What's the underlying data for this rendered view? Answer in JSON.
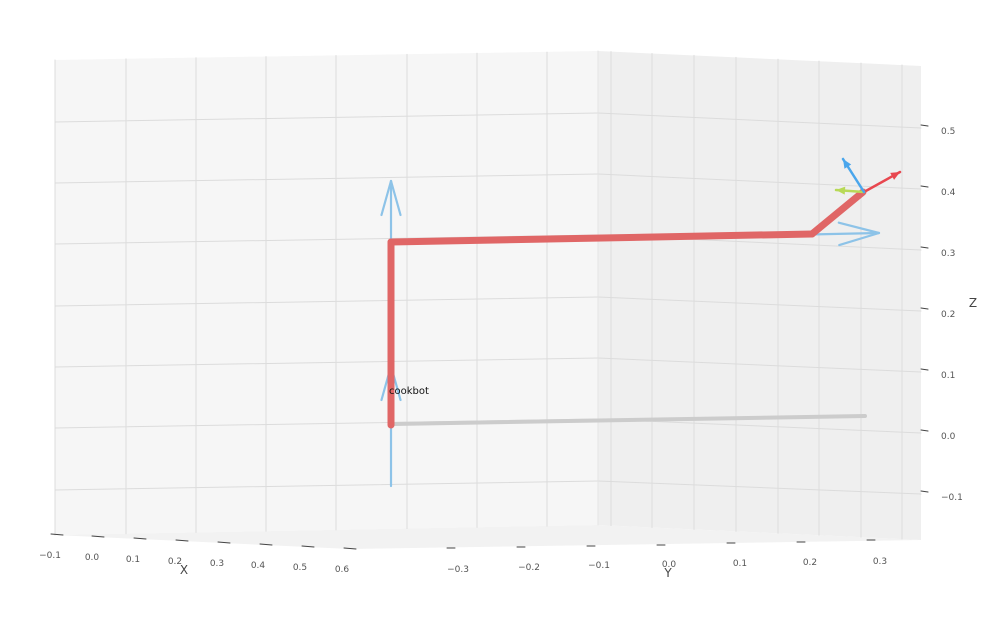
{
  "chart_data": {
    "type": "line3d",
    "title": "",
    "xlabel": "X",
    "ylabel": "Y",
    "zlabel": "Z",
    "xlim": [
      -0.1,
      0.7
    ],
    "ylim": [
      -0.3,
      0.3
    ],
    "zlim": [
      -0.1,
      0.5
    ],
    "grid": true,
    "xticks": [
      "−0.1",
      "0.0",
      "0.1",
      "0.2",
      "0.3",
      "0.4",
      "0.5",
      "0.6"
    ],
    "yticks": [
      "−0.3",
      "−0.2",
      "−0.1",
      "0.0",
      "0.1",
      "0.2",
      "0.3"
    ],
    "zticks": [
      "−0.1",
      "0.0",
      "0.1",
      "0.2",
      "0.3",
      "0.4",
      "0.5"
    ],
    "annotation": "cookbot",
    "colors": {
      "links": "#e06666",
      "base_shadow": "#cccccc",
      "joint_axes": "#8dc3e8",
      "frame_x": "#e8474f",
      "frame_y": "#b8d957",
      "frame_z": "#4aa6ec"
    },
    "series": [
      {
        "points": [
          [
            0,
            -0.3,
            0.0
          ],
          [
            0,
            -0.3,
            0.32
          ],
          [
            0,
            0.2,
            0.32
          ],
          [
            0,
            0.3,
            0.39
          ]
        ]
      }
    ],
    "shadow": {
      "points": [
        [
          0,
          -0.3,
          0.0
        ],
        [
          0,
          0.3,
          0.0
        ]
      ]
    },
    "joint_axes": [
      {
        "origin": [
          0,
          -0.3,
          0.05
        ],
        "direction": "z"
      },
      {
        "origin": [
          0,
          -0.3,
          0.29
        ],
        "direction": "z"
      },
      {
        "origin": [
          0,
          0.1,
          0.32
        ],
        "direction": "y"
      }
    ],
    "end_effector_frame": {
      "origin": [
        0,
        0.3,
        0.39
      ],
      "axes": [
        "x",
        "y",
        "z"
      ]
    }
  }
}
